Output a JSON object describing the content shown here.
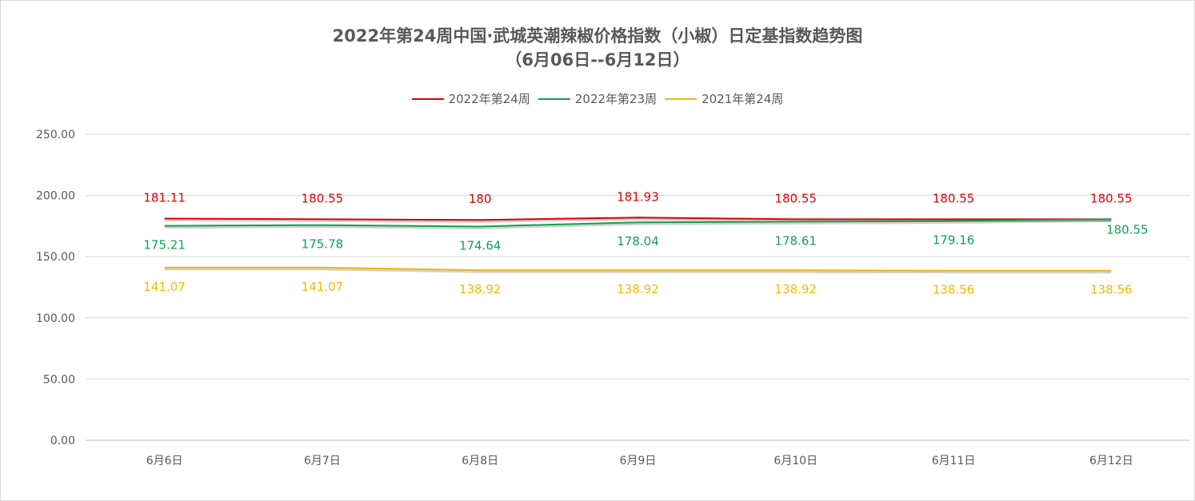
{
  "chart_data": {
    "type": "line",
    "title": "2022年第24周中国·武城英潮辣椒价格指数（小椒）日定基指数趋势图",
    "subtitle": "（6月06日--6月12日）",
    "categories": [
      "6月6日",
      "6月7日",
      "6月8日",
      "6月9日",
      "6月10日",
      "6月11日",
      "6月12日"
    ],
    "series": [
      {
        "name": "2022年第24周",
        "color": "#e00000",
        "values": [
          181.11,
          180.55,
          180,
          181.93,
          180.55,
          180.55,
          180.55
        ],
        "labels": [
          "181.11",
          "180.55",
          "180",
          "181.93",
          "180.55",
          "180.55",
          "180.55"
        ],
        "label_position": "above"
      },
      {
        "name": "2022年第23周",
        "color": "#12a150",
        "values": [
          175.21,
          175.78,
          174.64,
          178.04,
          178.61,
          179.16,
          180.55
        ],
        "labels": [
          "175.21",
          "175.78",
          "174.64",
          "178.04",
          "178.61",
          "179.16",
          "180.55"
        ],
        "label_position": "below"
      },
      {
        "name": "2021年第24周",
        "color": "#f5b800",
        "values": [
          141.07,
          141.07,
          138.92,
          138.92,
          138.92,
          138.56,
          138.56
        ],
        "labels": [
          "141.07",
          "141.07",
          "138.92",
          "138.92",
          "138.92",
          "138.56",
          "138.56"
        ],
        "label_position": "below"
      }
    ],
    "yticks": [
      "0.00",
      "50.00",
      "100.00",
      "150.00",
      "200.00",
      "250.00"
    ],
    "ylim": [
      0,
      250
    ],
    "grid": true,
    "legend_position": "top-center"
  }
}
